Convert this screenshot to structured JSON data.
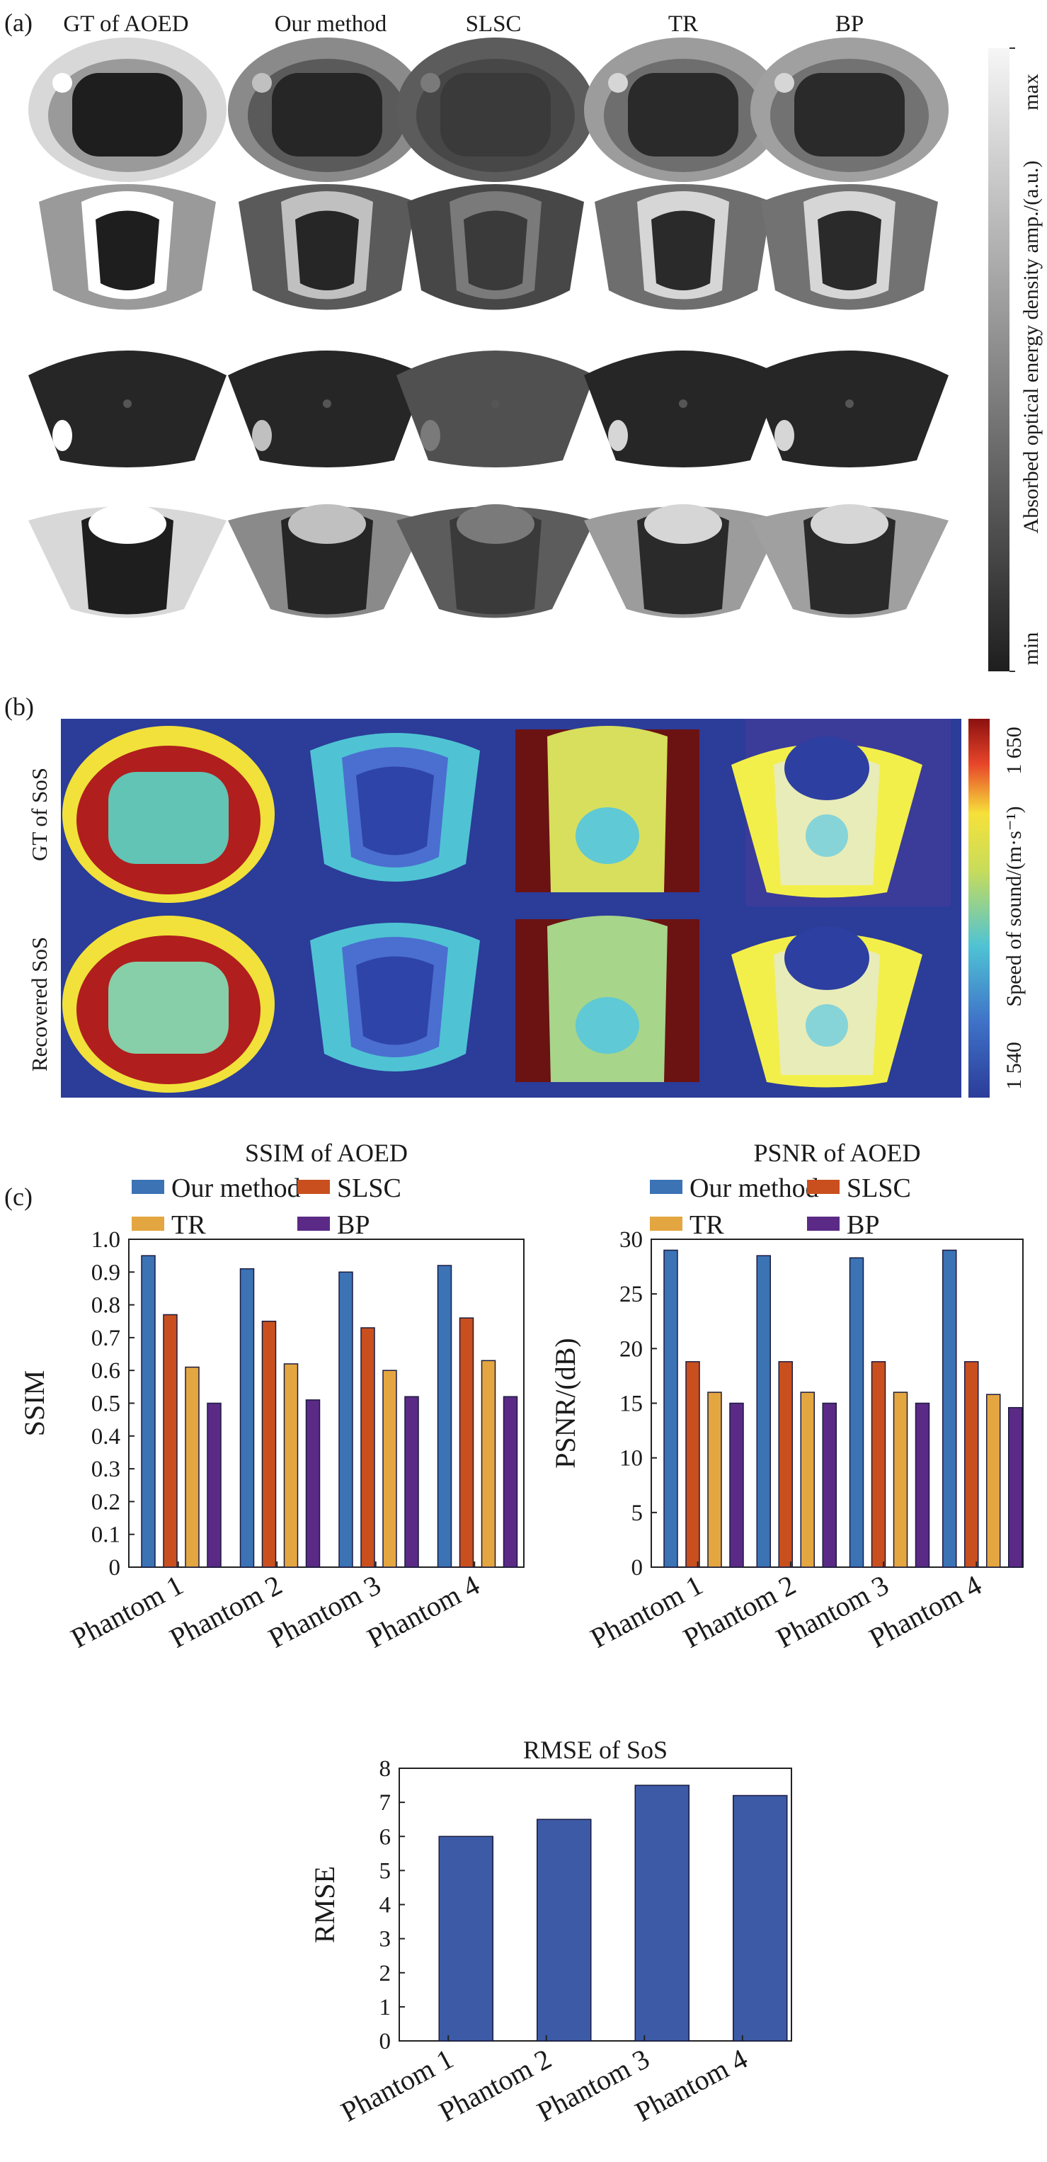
{
  "panel_a": {
    "label": "(a)",
    "columns": [
      "GT of AOED",
      "Our method",
      "SLSC",
      "TR",
      "BP"
    ],
    "colorbar": {
      "label": "Absorbed optical energy density amp./(a.u.)",
      "max_label": "max",
      "min_label": "min"
    },
    "phantom_count": 4
  },
  "panel_b": {
    "label": "(b)",
    "rows": [
      "GT of SoS",
      "Recovered SoS"
    ],
    "colorbar": {
      "label": "Speed of sound/(m·s⁻¹)",
      "max_label": "1 650",
      "min_label": "1 540"
    },
    "background_color": "#2b3c99"
  },
  "panel_c": {
    "label": "(c)"
  },
  "chart_data": [
    {
      "type": "bar",
      "title": "SSIM of AOED",
      "xlabel": "",
      "ylabel": "SSIM",
      "categories": [
        "Phantom 1",
        "Phantom 2",
        "Phantom 3",
        "Phantom 4"
      ],
      "ylim": [
        0,
        1.0
      ],
      "yticks": [
        "0",
        "0.1",
        "0.2",
        "0.3",
        "0.4",
        "0.5",
        "0.6",
        "0.7",
        "0.8",
        "0.9",
        "1.0"
      ],
      "legend_position": "top",
      "series": [
        {
          "name": "Our method",
          "color": "#3b73b5",
          "values": [
            0.95,
            0.91,
            0.9,
            0.92
          ]
        },
        {
          "name": "SLSC",
          "color": "#c9501e",
          "values": [
            0.77,
            0.75,
            0.73,
            0.76
          ]
        },
        {
          "name": "TR",
          "color": "#e4a640",
          "values": [
            0.61,
            0.62,
            0.6,
            0.63
          ]
        },
        {
          "name": "BP",
          "color": "#5b2a86",
          "values": [
            0.5,
            0.51,
            0.52,
            0.52
          ]
        }
      ]
    },
    {
      "type": "bar",
      "title": "PSNR of AOED",
      "xlabel": "",
      "ylabel": "PSNR/(dB)",
      "categories": [
        "Phantom 1",
        "Phantom 2",
        "Phantom 3",
        "Phantom 4"
      ],
      "ylim": [
        0,
        30
      ],
      "yticks": [
        "0",
        "5",
        "10",
        "15",
        "20",
        "25",
        "30"
      ],
      "legend_position": "top",
      "series": [
        {
          "name": "Our method",
          "color": "#3b73b5",
          "values": [
            29.0,
            28.5,
            28.3,
            29.0
          ]
        },
        {
          "name": "SLSC",
          "color": "#c9501e",
          "values": [
            18.8,
            18.8,
            18.8,
            18.8
          ]
        },
        {
          "name": "TR",
          "color": "#e4a640",
          "values": [
            16.0,
            16.0,
            16.0,
            15.8
          ]
        },
        {
          "name": "BP",
          "color": "#5b2a86",
          "values": [
            15.0,
            15.0,
            15.0,
            14.6
          ]
        }
      ]
    },
    {
      "type": "bar",
      "title": "RMSE of SoS",
      "xlabel": "",
      "ylabel": "RMSE",
      "categories": [
        "Phantom 1",
        "Phantom 2",
        "Phantom 3",
        "Phantom 4"
      ],
      "ylim": [
        0,
        8
      ],
      "yticks": [
        "0",
        "1",
        "2",
        "3",
        "4",
        "5",
        "6",
        "7",
        "8"
      ],
      "series": [
        {
          "color": "#3c5aa6",
          "values": [
            6.0,
            6.5,
            7.5,
            7.2
          ]
        }
      ]
    }
  ]
}
